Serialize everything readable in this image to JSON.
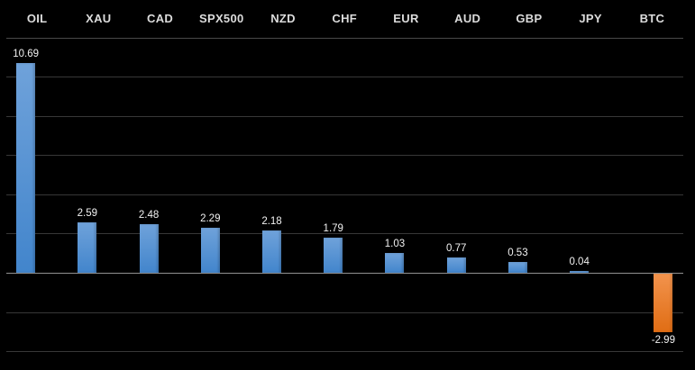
{
  "window": {
    "background": "#000000"
  },
  "chart_data": {
    "type": "bar",
    "title": "",
    "xlabel": "",
    "ylabel": "",
    "categories": [
      "OIL",
      "XAU",
      "CAD",
      "SPX500",
      "NZD",
      "CHF",
      "EUR",
      "AUD",
      "GBP",
      "JPY",
      "BTC"
    ],
    "values": [
      10.69,
      2.59,
      2.48,
      2.29,
      2.18,
      1.79,
      1.03,
      0.77,
      0.53,
      0.04,
      -2.99
    ],
    "value_labels": [
      "10.69",
      "2.59",
      "2.48",
      "2.29",
      "2.18",
      "1.79",
      "1.03",
      "0.77",
      "0.53",
      "0.04",
      "-2.99"
    ],
    "ylim": [
      -4,
      12
    ],
    "gridline_step": 2,
    "grid": true,
    "legend_position": "none",
    "colors": {
      "positive_bar": "#5b9bd5",
      "negative_bar": "#ed7d31",
      "background": "#000000",
      "category_text": "#dcdcdc",
      "value_text": "#f2f2f2",
      "gridline": "#373737",
      "zero_line": "#909090",
      "header_separator": "#4a4a4a"
    }
  }
}
